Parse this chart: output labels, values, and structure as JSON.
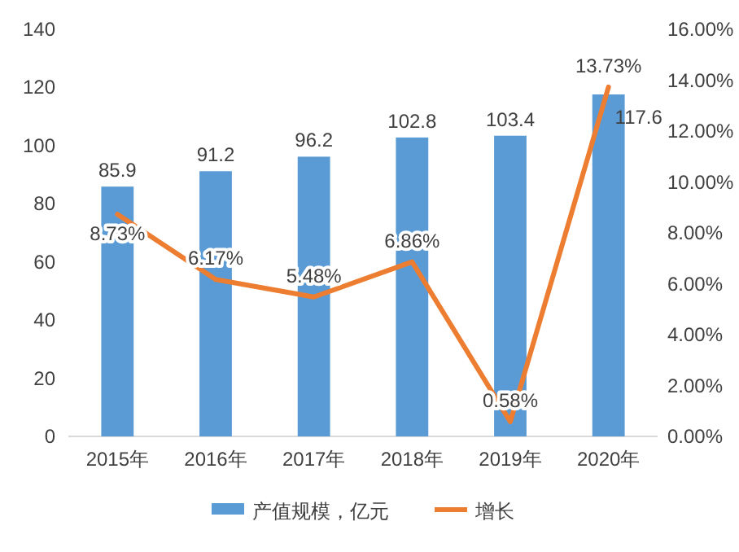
{
  "chart_data": {
    "type": "bar",
    "categories": [
      "2015年",
      "2016年",
      "2017年",
      "2018年",
      "2019年",
      "2020年"
    ],
    "series": [
      {
        "name": "产值规模，亿元",
        "color": "#5b9bd5",
        "values": [
          85.9,
          91.2,
          96.2,
          102.8,
          103.4,
          117.6
        ],
        "value_labels": [
          "85.9",
          "91.2",
          "96.2",
          "102.8",
          "103.4",
          "117.6"
        ]
      },
      {
        "name": "增长",
        "type": "line",
        "axis": "y2",
        "color": "#ed7d31",
        "values": [
          8.73,
          6.17,
          5.48,
          6.86,
          0.58,
          13.73
        ],
        "value_labels": [
          "8.73%",
          "6.17%",
          "5.48%",
          "6.86%",
          "0.58%",
          "13.73%"
        ]
      }
    ],
    "ylim": [
      0,
      140
    ],
    "yticks": [
      0,
      20,
      40,
      60,
      80,
      100,
      120,
      140
    ],
    "y2lim": [
      0,
      16
    ],
    "y2ticks": [
      {
        "value": 0,
        "label": "0.00%"
      },
      {
        "value": 2,
        "label": "2.00%"
      },
      {
        "value": 4,
        "label": "4.00%"
      },
      {
        "value": 6,
        "label": "6.00%"
      },
      {
        "value": 8,
        "label": "8.00%"
      },
      {
        "value": 10,
        "label": "10.00%"
      },
      {
        "value": 12,
        "label": "12.00%"
      },
      {
        "value": 14,
        "label": "14.00%"
      },
      {
        "value": 16,
        "label": "16.00%"
      }
    ],
    "legend": "bottom",
    "marker": "none",
    "line_style": "solid"
  }
}
